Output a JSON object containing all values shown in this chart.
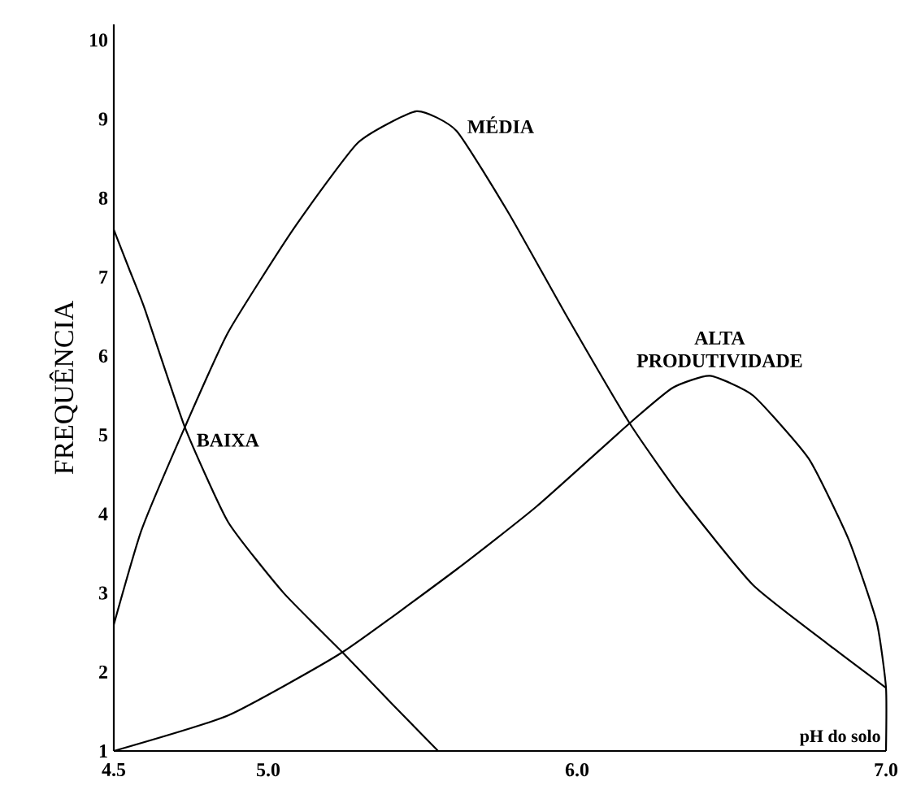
{
  "chart_data": {
    "type": "line",
    "ylabel": "FREQUÊNCIA",
    "xlabel": "pH do solo",
    "xlim": [
      4.5,
      7.0
    ],
    "ylim": [
      1,
      10.2
    ],
    "xticks": [
      4.5,
      {
        "value": 5,
        "label": "5.0"
      },
      {
        "value": 6,
        "label": "6.0"
      },
      {
        "value": 7,
        "label": "7.0"
      }
    ],
    "yticks": [
      1,
      2,
      3,
      4,
      5,
      6,
      7,
      8,
      9,
      10
    ],
    "grid": false,
    "legend": false,
    "line_style": "solid",
    "series": [
      {
        "name": "BAIXA",
        "color": "#000000",
        "x": [
          4.5,
          4.55,
          4.6,
          4.73,
          4.87,
          5.05,
          5.24,
          5.4,
          5.55
        ],
        "values": [
          7.6,
          7.1,
          6.6,
          5.1,
          3.9,
          3.0,
          2.25,
          1.6,
          1.0
        ]
      },
      {
        "name": "MÉDIA",
        "color": "#000000",
        "x": [
          4.5,
          4.59,
          4.73,
          4.87,
          5.08,
          5.29,
          5.48,
          5.61,
          5.78,
          5.96,
          6.17,
          6.34,
          6.57,
          6.83,
          7.0
        ],
        "values": [
          2.6,
          3.8,
          5.1,
          6.3,
          7.6,
          8.7,
          9.1,
          8.85,
          7.8,
          6.55,
          5.15,
          4.2,
          3.1,
          2.3,
          1.8
        ]
      },
      {
        "name": "ALTA PRODUTIVIDADE",
        "color": "#000000",
        "x": [
          4.5,
          4.87,
          5.24,
          5.61,
          5.87,
          6.17,
          6.31,
          6.43,
          6.57,
          6.75,
          6.88,
          6.97,
          7.0,
          7.0
        ],
        "values": [
          1.0,
          1.45,
          2.25,
          3.3,
          4.1,
          5.15,
          5.6,
          5.75,
          5.5,
          4.7,
          3.67,
          2.63,
          1.8,
          1.0
        ]
      }
    ]
  }
}
